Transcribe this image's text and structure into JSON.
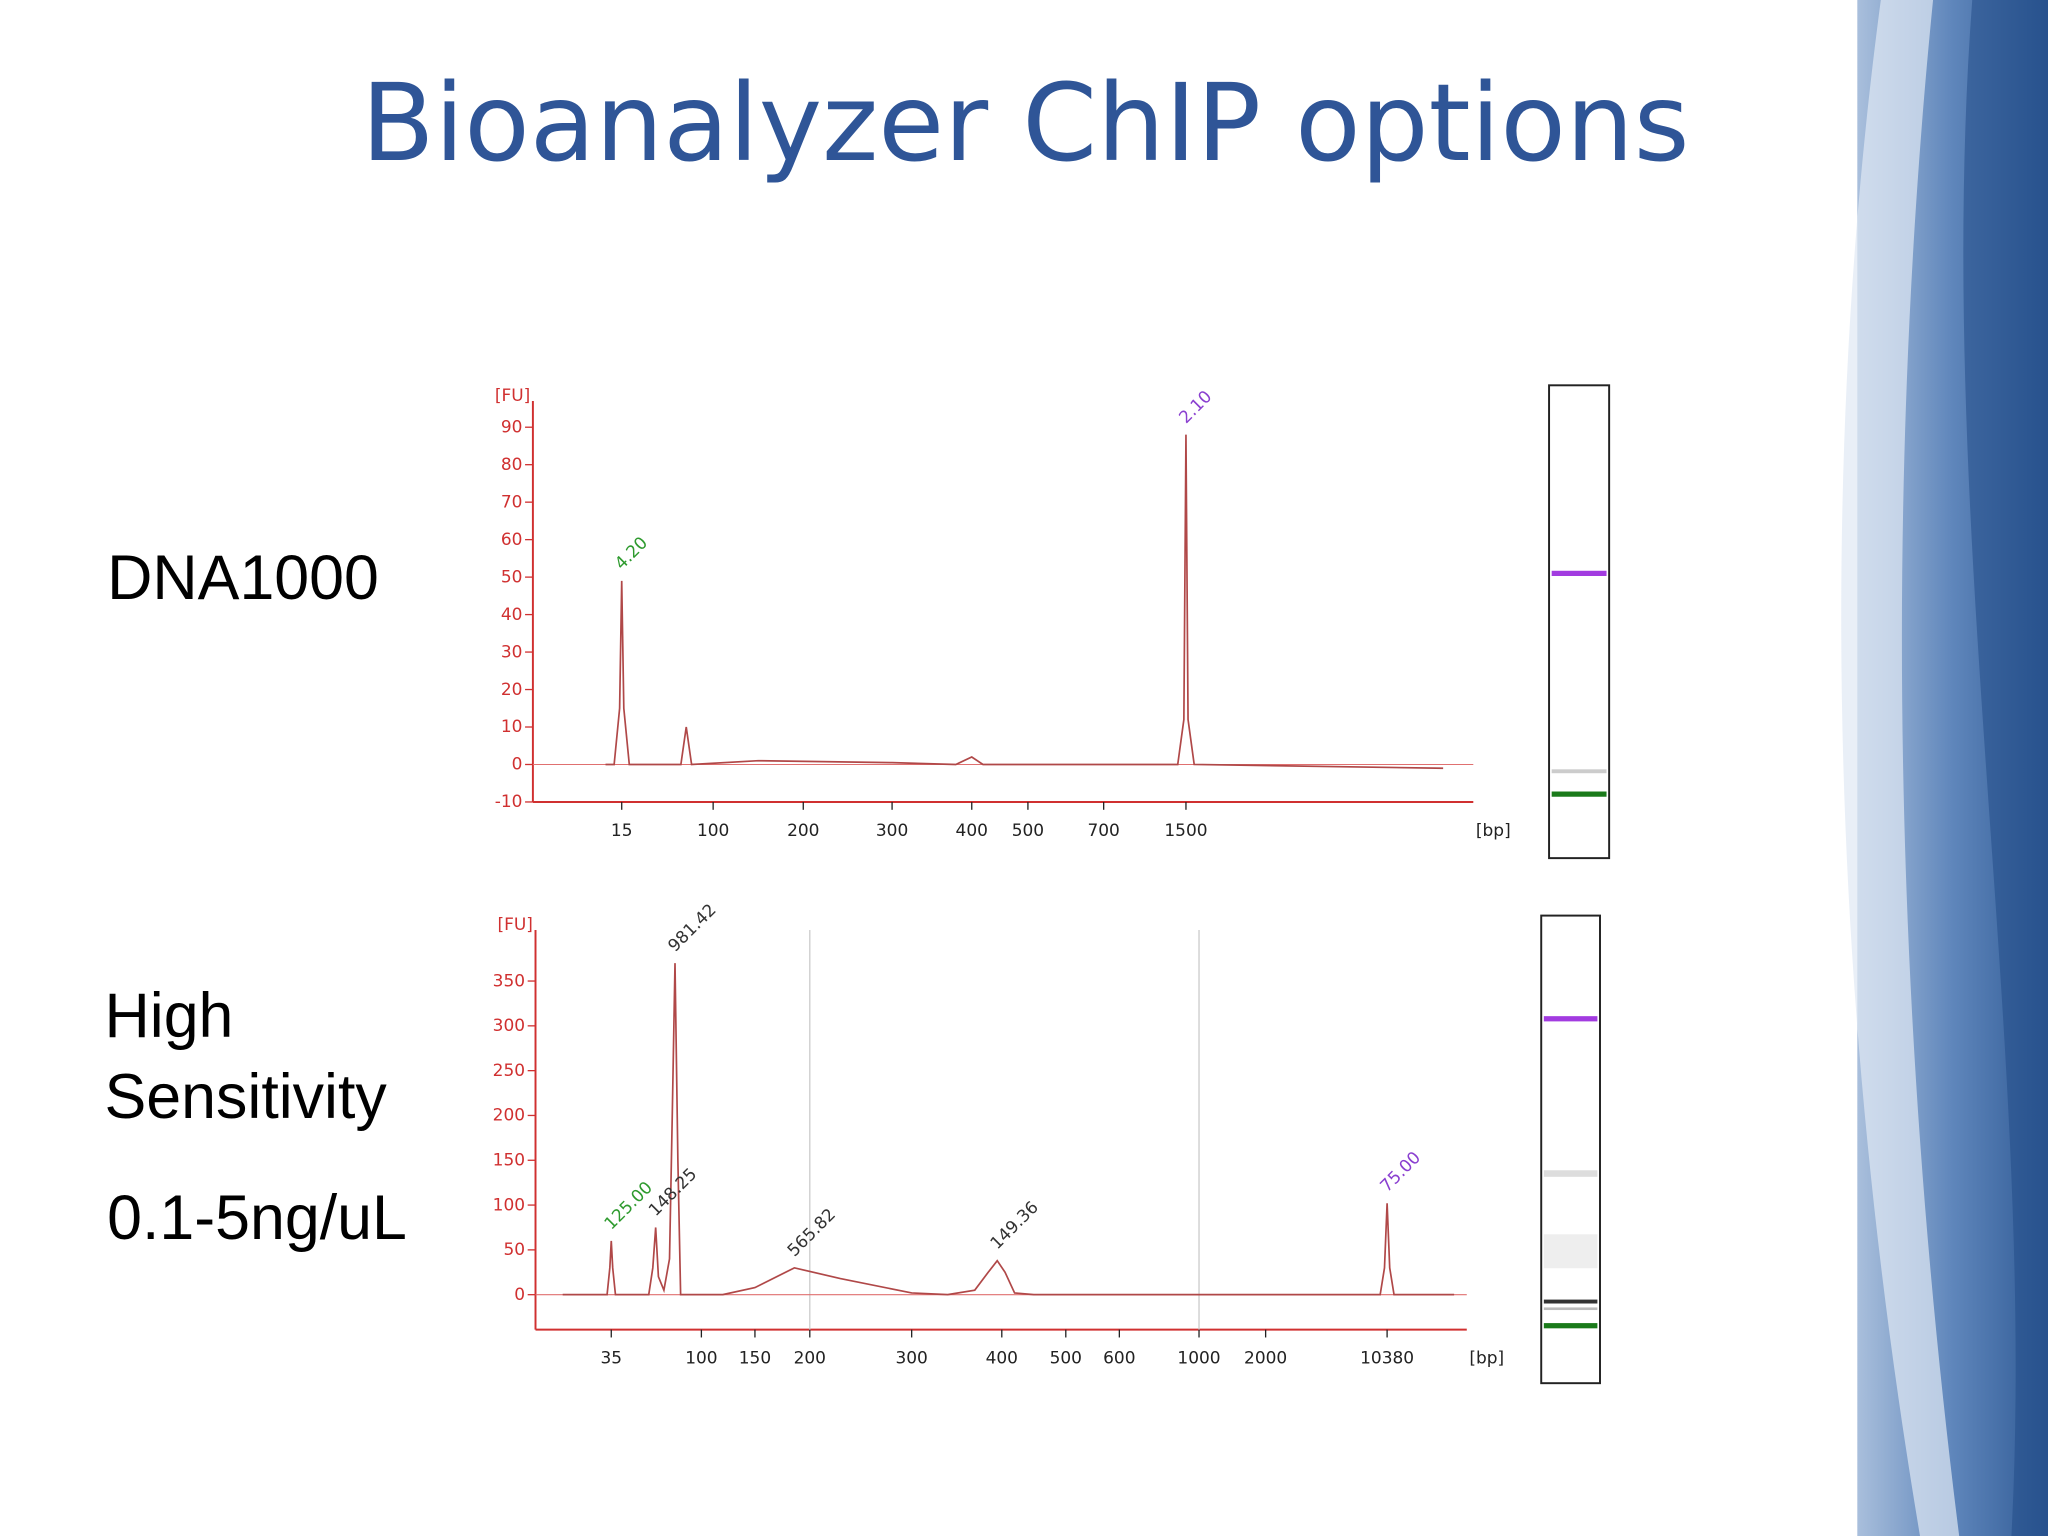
{
  "slide": {
    "title": "Bioanalyzer ChIP options",
    "labels": [
      "DNA1000",
      "High Sensitivity",
      "0.1-5ng/uL"
    ]
  },
  "chart_data": [
    {
      "type": "line",
      "ylabel": "[FU]",
      "xlabel": "[bp]",
      "color": "#b04848",
      "axis_color": "#d03030",
      "ylim": [
        -10,
        97
      ],
      "yticks": [
        -10,
        0,
        10,
        20,
        30,
        40,
        50,
        60,
        70,
        80,
        90
      ],
      "xticks": [
        15,
        100,
        200,
        300,
        400,
        500,
        700,
        1500
      ],
      "x": [
        0,
        8,
        13,
        15,
        17,
        22,
        60,
        70,
        75,
        80,
        150,
        300,
        380,
        400,
        420,
        1420,
        1480,
        1500,
        1520,
        1580,
        4000
      ],
      "values": [
        0,
        0,
        15,
        49,
        15,
        0,
        0,
        0,
        10,
        0,
        1,
        0.5,
        0,
        2,
        0,
        0,
        12,
        88,
        12,
        0,
        -1
      ],
      "annotations": [
        {
          "text": "4.20",
          "x": 15,
          "y": 49,
          "color": "#2e9a2e"
        },
        {
          "text": "2.10",
          "x": 1500,
          "y": 88,
          "color": "#8a3fd0"
        }
      ]
    },
    {
      "type": "line",
      "ylabel": "[FU]",
      "xlabel": "[bp]",
      "color": "#b04848",
      "axis_color": "#d03030",
      "ylim": [
        -39,
        407
      ],
      "yticks": [
        0,
        50,
        100,
        150,
        200,
        250,
        300,
        350
      ],
      "xticks": [
        35,
        100,
        150,
        200,
        300,
        400,
        500,
        600,
        1000,
        2000,
        10380
      ],
      "markers": [
        200,
        1000
      ],
      "x": [
        0,
        32,
        34,
        35,
        36,
        38,
        62,
        65,
        67,
        69,
        73,
        77,
        79,
        81,
        83,
        85,
        120,
        150,
        186,
        230,
        300,
        340,
        370,
        385,
        395,
        405,
        420,
        450,
        9900,
        10200,
        10380,
        10560,
        10860,
        15000
      ],
      "values": [
        0,
        0,
        30,
        60,
        30,
        0,
        0,
        30,
        75,
        20,
        5,
        40,
        200,
        370,
        150,
        0,
        0,
        8,
        30,
        18,
        2,
        0,
        5,
        25,
        38,
        25,
        2,
        0,
        0,
        30,
        102,
        30,
        0,
        0
      ],
      "annotations": [
        {
          "text": "125.00",
          "x": 35,
          "y": 60,
          "color": "#2e9a2e"
        },
        {
          "text": "148.25",
          "x": 67,
          "y": 75,
          "color": "#333333"
        },
        {
          "text": "981.42",
          "x": 81,
          "y": 370,
          "color": "#333333"
        },
        {
          "text": "565.82",
          "x": 186,
          "y": 30,
          "color": "#333333"
        },
        {
          "text": "149.36",
          "x": 395,
          "y": 38,
          "color": "#333333"
        },
        {
          "text": "75.00",
          "x": 10380,
          "y": 102,
          "color": "#8a3fd0"
        }
      ]
    }
  ]
}
